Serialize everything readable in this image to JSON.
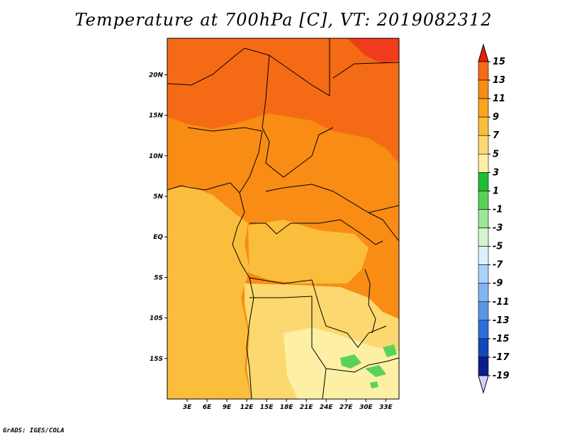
{
  "title": "Temperature at 700hPa [C], VT: 2019082312",
  "credit": "GrADS: IGES/COLA",
  "map": {
    "lon_range": [
      0,
      35
    ],
    "lat_range": [
      -20,
      24.5
    ],
    "lat_ticks": [
      "20N",
      "15N",
      "10N",
      "5N",
      "EQ",
      "5S",
      "10S",
      "15S"
    ],
    "lat_values": [
      20,
      15,
      10,
      5,
      0,
      -5,
      -10,
      -15
    ],
    "lon_ticks": [
      "3E",
      "6E",
      "9E",
      "12E",
      "15E",
      "18E",
      "21E",
      "24E",
      "27E",
      "30E",
      "33E"
    ],
    "lon_values": [
      3,
      6,
      9,
      12,
      15,
      18,
      21,
      24,
      27,
      30,
      33
    ]
  },
  "colorbar": {
    "labels": [
      "15",
      "13",
      "11",
      "9",
      "7",
      "5",
      "3",
      "1",
      "-1",
      "-3",
      "-5",
      "-7",
      "-9",
      "-11",
      "-13",
      "-15",
      "-17",
      "-19"
    ],
    "colors": [
      "#f03c1c",
      "#f56a14",
      "#f88c14",
      "#faa520",
      "#fbbe3c",
      "#fcd870",
      "#fdefa4",
      "#1ebe32",
      "#5ad25a",
      "#9ce696",
      "#d2f5d0",
      "#dcf0ff",
      "#aad2fa",
      "#82b4f0",
      "#5a96e6",
      "#2d6edc",
      "#1446be",
      "#0a1e8c"
    ],
    "top_arrow_color": "#e61e0a",
    "bottom_arrow_color": "#d2d2ff"
  },
  "fields": {
    "ocean_color": "#fbbe3c",
    "warm_north_color": "#f56a14",
    "mid_color": "#f88c14",
    "cool_south_color": "#fcd870",
    "coolest_color": "#fdefa4",
    "green_color": "#5ad25a"
  }
}
